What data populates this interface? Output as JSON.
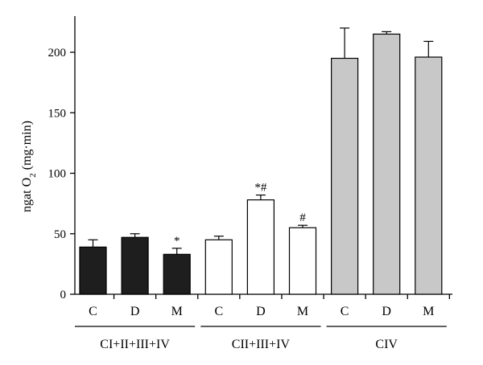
{
  "chart_data": {
    "type": "bar",
    "ylabel_main": "ngat O",
    "ylabel_sub": "2",
    "ylabel_tail": " (mg·min)",
    "ylim": [
      0,
      225
    ],
    "yticks": [
      0,
      50,
      100,
      150,
      200
    ],
    "groups": [
      {
        "name": "CI+II+III+IV",
        "color": "#1e1e1e",
        "bars": [
          {
            "category": "C",
            "value": 39,
            "error": 6,
            "annotation": ""
          },
          {
            "category": "D",
            "value": 47,
            "error": 3,
            "annotation": ""
          },
          {
            "category": "M",
            "value": 33,
            "error": 5,
            "annotation": "*"
          }
        ]
      },
      {
        "name": "CII+III+IV",
        "color": "#ffffff",
        "bars": [
          {
            "category": "C",
            "value": 45,
            "error": 3,
            "annotation": ""
          },
          {
            "category": "D",
            "value": 78,
            "error": 4,
            "annotation": "*#"
          },
          {
            "category": "M",
            "value": 55,
            "error": 2,
            "annotation": "#"
          }
        ]
      },
      {
        "name": "CIV",
        "color": "#c8c8c8",
        "bars": [
          {
            "category": "C",
            "value": 195,
            "error": 25,
            "annotation": ""
          },
          {
            "category": "D",
            "value": 215,
            "error": 2,
            "annotation": ""
          },
          {
            "category": "M",
            "value": 196,
            "error": 13,
            "annotation": ""
          }
        ]
      }
    ]
  }
}
